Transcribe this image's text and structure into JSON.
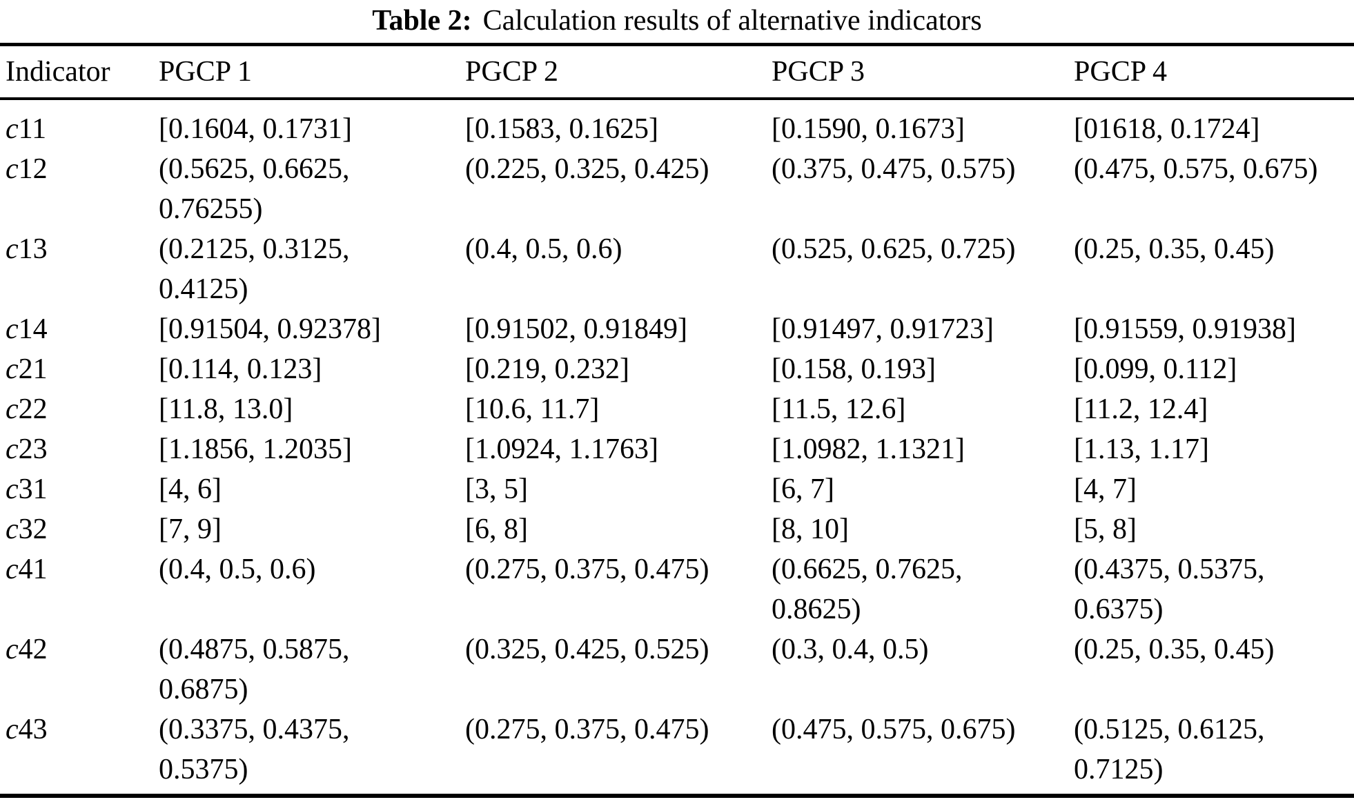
{
  "caption": {
    "label": "Table 2:",
    "text": "Calculation results of alternative indicators"
  },
  "table": {
    "columns": [
      "Indicator",
      "PGCP 1",
      "PGCP 2",
      "PGCP 3",
      "PGCP 4"
    ],
    "rows": [
      {
        "indicator": "c11",
        "values": [
          "[0.1604, 0.1731]",
          "[0.1583, 0.1625]",
          "[0.1590, 0.1673]",
          "[01618, 0.1724]"
        ]
      },
      {
        "indicator": "c12",
        "values": [
          "(0.5625, 0.6625, 0.76255)",
          "(0.225, 0.325, 0.425)",
          "(0.375, 0.475, 0.575)",
          "(0.475, 0.575, 0.675)"
        ]
      },
      {
        "indicator": "c13",
        "values": [
          "(0.2125, 0.3125, 0.4125)",
          "(0.4, 0.5, 0.6)",
          "(0.525, 0.625, 0.725)",
          "(0.25, 0.35, 0.45)"
        ]
      },
      {
        "indicator": "c14",
        "values": [
          "[0.91504, 0.92378]",
          "[0.91502, 0.91849]",
          "[0.91497, 0.91723]",
          "[0.91559, 0.91938]"
        ]
      },
      {
        "indicator": "c21",
        "values": [
          "[0.114, 0.123]",
          "[0.219, 0.232]",
          "[0.158, 0.193]",
          "[0.099, 0.112]"
        ]
      },
      {
        "indicator": "c22",
        "values": [
          "[11.8, 13.0]",
          "[10.6, 11.7]",
          "[11.5, 12.6]",
          "[11.2, 12.4]"
        ]
      },
      {
        "indicator": "c23",
        "values": [
          "[1.1856, 1.2035]",
          "[1.0924, 1.1763]",
          "[1.0982, 1.1321]",
          "[1.13, 1.17]"
        ]
      },
      {
        "indicator": "c31",
        "values": [
          "[4, 6]",
          "[3, 5]",
          "[6, 7]",
          "[4, 7]"
        ]
      },
      {
        "indicator": "c32",
        "values": [
          "[7, 9]",
          "[6, 8]",
          "[8, 10]",
          "[5, 8]"
        ]
      },
      {
        "indicator": "c41",
        "values": [
          "(0.4, 0.5, 0.6)",
          "(0.275, 0.375, 0.475)",
          "(0.6625, 0.7625, 0.8625)",
          "(0.4375, 0.5375, 0.6375)"
        ]
      },
      {
        "indicator": "c42",
        "values": [
          "(0.4875, 0.5875, 0.6875)",
          "(0.325, 0.425, 0.525)",
          "(0.3, 0.4, 0.5)",
          "(0.25, 0.35, 0.45)"
        ]
      },
      {
        "indicator": "c43",
        "values": [
          "(0.3375, 0.4375, 0.5375)",
          "(0.275, 0.375, 0.475)",
          "(0.475, 0.575, 0.675)",
          "(0.5125, 0.6125, 0.7125)"
        ]
      }
    ]
  }
}
